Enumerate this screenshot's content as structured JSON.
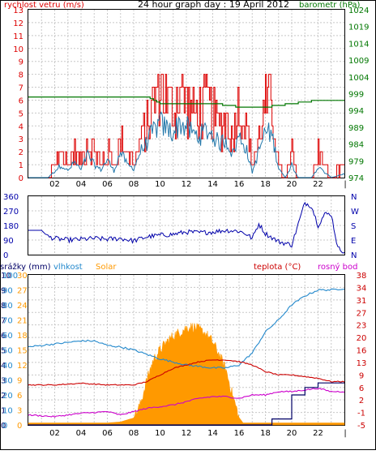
{
  "title": "24 hour graph day : 19 April 2012",
  "colors": {
    "wind": "#dd0000",
    "gust": "#dd0000",
    "wind_avg": "#2277aa",
    "barometer": "#007700",
    "direction": "#0000aa",
    "rain": "#000066",
    "humidity": "#2288cc",
    "solar": "#ff9900",
    "temperature": "#cc0000",
    "dewpoint": "#cc00cc",
    "grid": "#c8c8c8"
  },
  "chart_data": [
    {
      "type": "line",
      "panel": "wind-barometer",
      "left_axis_label": "rychlost vetru (m/s)",
      "right_axis_label": "barometr (hPa)",
      "left_ticks": [
        "0",
        "1",
        "2",
        "3",
        "4",
        "5",
        "6",
        "7",
        "8",
        "9",
        "10",
        "11",
        "12",
        "13"
      ],
      "right_ticks": [
        "974",
        "979",
        "984",
        "989",
        "994",
        "999",
        "1004",
        "1009",
        "1014",
        "1019",
        "1024"
      ],
      "x_ticks": [
        "02",
        "04",
        "06",
        "08",
        "10",
        "12",
        "14",
        "16",
        "18",
        "20",
        "22"
      ],
      "ylim_left": [
        0,
        13
      ],
      "ylim_right": [
        974,
        1024
      ],
      "series": [
        {
          "role": "wind_gust",
          "x": [
            0,
            1.5,
            2,
            2.5,
            3,
            3.5,
            4,
            4.5,
            5,
            5.5,
            6,
            6.5,
            7,
            7.5,
            8,
            8.5,
            9,
            9.5,
            10,
            10.5,
            11,
            11.5,
            12,
            12.5,
            13,
            13.5,
            14,
            14.5,
            15,
            15.5,
            16,
            16.5,
            17,
            17.5,
            18,
            18.5,
            19,
            19.5,
            20,
            20.5,
            21,
            21.5,
            22,
            22.5,
            23,
            24
          ],
          "values": [
            0,
            0,
            1,
            2,
            1,
            2,
            1,
            3,
            2,
            1,
            2,
            1,
            3,
            2,
            1,
            3,
            4,
            6,
            8,
            6,
            5,
            7,
            6,
            5,
            5,
            6,
            5,
            4,
            5,
            3,
            6,
            4,
            1,
            3,
            6,
            5,
            1,
            0,
            2,
            0,
            0,
            0,
            2,
            1,
            0,
            1
          ]
        },
        {
          "role": "wind_avg",
          "x": [
            0,
            1.5,
            2,
            2.5,
            3,
            3.5,
            4,
            4.5,
            5,
            5.5,
            6,
            6.5,
            7,
            7.5,
            8,
            8.5,
            9,
            9.5,
            10,
            10.5,
            11,
            11.5,
            12,
            12.5,
            13,
            13.5,
            14,
            14.5,
            15,
            15.5,
            16,
            16.5,
            17,
            17.5,
            18,
            18.5,
            19,
            19.5,
            20,
            20.5,
            21,
            21.5,
            22,
            22.5,
            23,
            24
          ],
          "values": [
            0,
            0,
            0.5,
            1,
            0.5,
            1.2,
            0.6,
            1.8,
            1,
            0.6,
            1.4,
            0.5,
            2,
            1,
            0.7,
            2,
            2.7,
            3.6,
            4.2,
            3.8,
            3.5,
            4.2,
            3.9,
            3.4,
            3.2,
            3.7,
            3.3,
            2.6,
            3,
            1.8,
            3.2,
            2.4,
            0.4,
            2,
            3.6,
            3.3,
            0.8,
            0,
            1,
            0,
            0,
            0,
            0.8,
            0.4,
            0,
            0.3
          ]
        },
        {
          "role": "barometer",
          "x": [
            0,
            3,
            6,
            9,
            10,
            12,
            14,
            16,
            17,
            18,
            20,
            22,
            24
          ],
          "values": [
            998,
            998,
            998,
            998,
            996,
            996,
            996,
            995,
            995,
            995,
            996,
            997,
            997
          ]
        }
      ]
    },
    {
      "type": "line",
      "panel": "wind-direction",
      "left_ticks": [
        "0",
        "90",
        "180",
        "270",
        "360"
      ],
      "right_ticks": [
        "N",
        "E",
        "S",
        "W",
        "N"
      ],
      "ylim": [
        0,
        360
      ],
      "x": [
        0,
        1,
        1.5,
        2,
        3,
        4,
        5,
        6,
        7,
        8,
        9,
        10,
        11,
        12,
        13,
        14,
        15,
        16,
        16.5,
        17,
        17.5,
        18,
        19,
        20,
        20.5,
        21,
        21.5,
        22,
        22.5,
        23,
        23.5,
        24
      ],
      "values": [
        150,
        150,
        110,
        100,
        90,
        95,
        100,
        95,
        100,
        85,
        110,
        120,
        125,
        140,
        135,
        140,
        150,
        145,
        130,
        100,
        190,
        130,
        80,
        60,
        190,
        320,
        300,
        180,
        250,
        250,
        40,
        20
      ]
    },
    {
      "type": "line",
      "panel": "rain-humidity-temperature",
      "labels": {
        "rain": "srážky (mm)",
        "humidity": "vlhkost",
        "solar": "Solar",
        "temperature": "teplota (°C)",
        "dewpoint": "rosný bod"
      },
      "rain_ticks": [
        "0",
        "1",
        "2",
        "3",
        "4",
        "5",
        "6",
        "7",
        "8",
        "9",
        "10"
      ],
      "humidity_ticks": [
        "0",
        "10",
        "20",
        "30",
        "40",
        "50",
        "60",
        "70",
        "80",
        "90",
        "100"
      ],
      "solar_ticks": [
        "0",
        "3",
        "6",
        "9",
        "12",
        "15",
        "18",
        "21",
        "24",
        "27",
        "30"
      ],
      "temp_ticks": [
        "-5",
        "-1",
        "2",
        "6",
        "9",
        "13",
        "16",
        "20",
        "23",
        "27",
        "31",
        "34",
        "38"
      ],
      "ylim_rain": [
        0,
        10
      ],
      "ylim_humidity": [
        0,
        100
      ],
      "ylim_temp": [
        -5,
        40
      ],
      "series": [
        {
          "role": "humidity",
          "x": [
            0,
            2,
            4,
            5,
            6,
            7,
            8,
            10,
            12,
            14,
            15,
            16,
            17,
            18,
            19,
            20,
            21,
            22,
            23,
            24
          ],
          "values": [
            52,
            54,
            56,
            56,
            53,
            52,
            50,
            44,
            40,
            38,
            38,
            40,
            48,
            62,
            70,
            80,
            86,
            90,
            90,
            91
          ]
        },
        {
          "role": "temperature",
          "x": [
            0,
            2,
            4,
            6,
            8,
            9,
            10,
            11,
            12,
            13,
            14,
            15,
            16,
            17,
            18,
            19,
            20,
            22,
            23,
            24
          ],
          "values": [
            7,
            7,
            7.5,
            7,
            7,
            8,
            10,
            12,
            13,
            14,
            14.5,
            14.5,
            14,
            13,
            11,
            10,
            10,
            9,
            8,
            8
          ]
        },
        {
          "role": "dewpoint",
          "x": [
            0,
            2,
            4,
            6,
            7,
            8,
            9,
            10,
            11,
            12,
            13,
            14,
            15,
            16,
            17,
            18,
            19,
            20,
            21,
            22,
            23,
            24
          ],
          "values": [
            -2,
            -2.5,
            -1.5,
            -1,
            -2,
            -1,
            0,
            0.5,
            1,
            2,
            3,
            3.5,
            3.5,
            3,
            4,
            4,
            5,
            5,
            5.5,
            6,
            5,
            5
          ],
          "note_ignore": ""
        },
        {
          "role": "rain_total",
          "x": [
            0,
            17.8,
            18.5,
            19,
            20,
            21,
            22,
            24
          ],
          "values": [
            0,
            0,
            0.4,
            0.4,
            2,
            2.5,
            2.8,
            2.8
          ]
        },
        {
          "role": "solar",
          "x": [
            0,
            5,
            6,
            7,
            8,
            8.5,
            9,
            9.5,
            10,
            10.5,
            11,
            11.5,
            12,
            12.5,
            13,
            13.5,
            14,
            14.5,
            15,
            15.5,
            16,
            16.3,
            17,
            24
          ],
          "values": [
            0.4,
            0.4,
            0.4,
            0.6,
            1.4,
            4,
            9,
            13,
            15,
            16.5,
            17.8,
            18.5,
            19.4,
            19.6,
            19,
            18.2,
            16.5,
            14,
            11,
            6,
            1.5,
            0.4,
            0.4,
            0.4
          ]
        }
      ]
    }
  ]
}
